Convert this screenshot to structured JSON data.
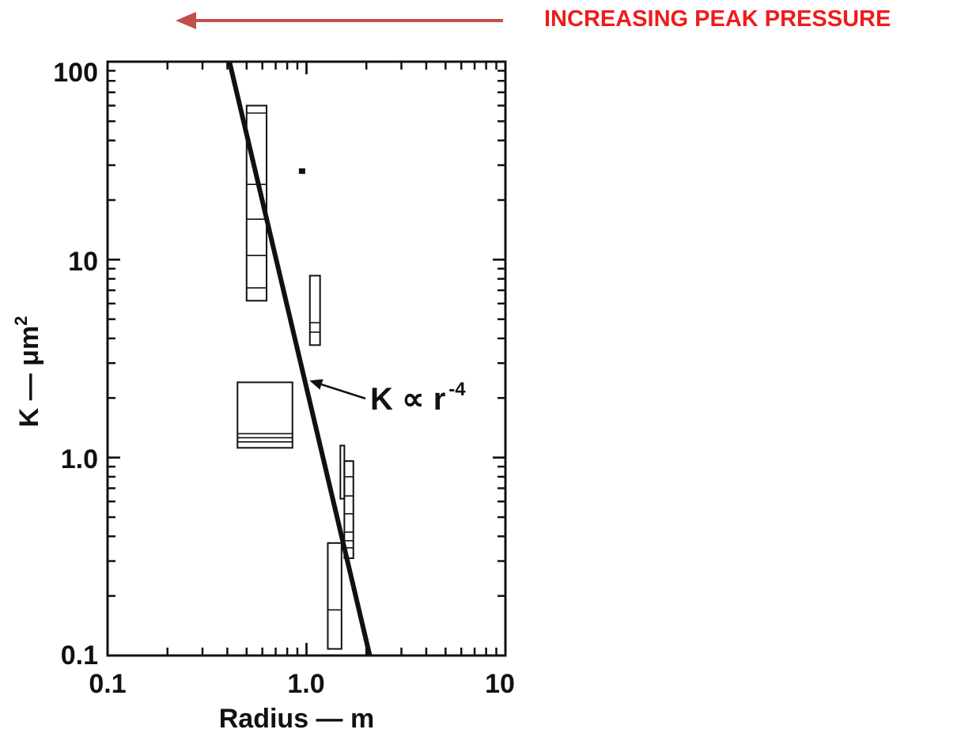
{
  "banner": {
    "text": "INCREASING PEAK PRESSURE",
    "text_color": "#ee1c1c",
    "arrow_color": "#c0504d",
    "arrow_direction": "left"
  },
  "chart_data": {
    "type": "scatter",
    "xlabel": "Radius — m",
    "ylabel_main": "K — μm",
    "ylabel_superscript": "2",
    "x_scale": "log",
    "y_scale": "log",
    "xlim": [
      0.1,
      10
    ],
    "ylim": [
      0.1,
      100
    ],
    "x_tick_labels": [
      {
        "value": 0.1,
        "label": "0.1"
      },
      {
        "value": 1,
        "label": "1.0"
      },
      {
        "value": 10,
        "label": "10"
      }
    ],
    "y_tick_labels": [
      {
        "value": 0.1,
        "label": "0.1"
      },
      {
        "value": 1,
        "label": "1.0"
      },
      {
        "value": 10,
        "label": "10"
      },
      {
        "value": 100,
        "label": "100"
      }
    ],
    "grid": false,
    "fit_line": {
      "label": "K ∝ r",
      "label_exponent": "-4",
      "points": [
        [
          0.41,
          100
        ],
        [
          2.08,
          0.1
        ]
      ],
      "label_arrow_target": [
        0.98,
        2.45
      ]
    },
    "boxes": [
      {
        "x_range": [
          0.5,
          0.63
        ],
        "y_range": [
          6.2,
          60
        ],
        "dividers": [
          7.2,
          10.5,
          16,
          24,
          55
        ]
      },
      {
        "x_range": [
          1.04,
          1.17
        ],
        "y_range": [
          3.7,
          8.3
        ],
        "dividers": [
          4.3,
          4.8
        ]
      },
      {
        "x_range": [
          0.45,
          0.85
        ],
        "y_range": [
          1.12,
          2.4
        ],
        "dividers": [
          1.2,
          1.26,
          1.32
        ]
      },
      {
        "x_range": [
          1.48,
          1.55
        ],
        "y_range": [
          0.62,
          1.15
        ],
        "dividers": []
      },
      {
        "x_range": [
          1.55,
          1.72
        ],
        "y_range": [
          0.31,
          0.96
        ],
        "dividers": [
          0.35,
          0.38,
          0.42,
          0.52,
          0.64,
          0.8
        ]
      },
      {
        "x_range": [
          1.28,
          1.5
        ],
        "y_range": [
          0.108,
          0.37
        ],
        "dividers": [
          0.17
        ]
      }
    ],
    "points": [
      {
        "x": 0.95,
        "y": 28
      }
    ]
  }
}
